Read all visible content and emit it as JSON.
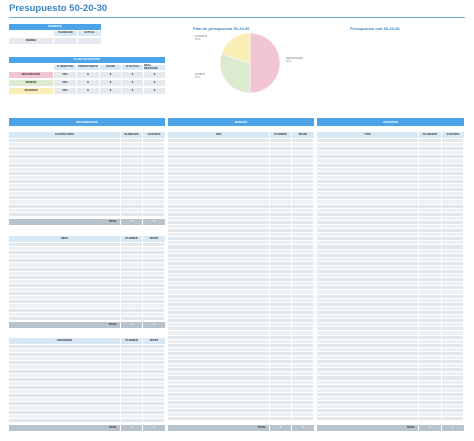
{
  "title": "Presupuesto 50-20-30",
  "ingresos": {
    "header": "INGRESOS",
    "col_planned": "PLANEADO",
    "col_actual": "ACTUAL",
    "row_label": "NÓMINA"
  },
  "flujo": {
    "header": "FLUJO DE EFECTIVO",
    "columns": [
      "% OBJETIVO",
      "PRESUPUESTO",
      "GASTO",
      "% ACTUAL",
      "REAL RESTANTE"
    ],
    "rows": [
      {
        "label": "NECESIDADES",
        "pct": "50%",
        "presupuesto": "$",
        "gasto": "$",
        "actual": "$",
        "restante": "$"
      },
      {
        "label": "DESEOS",
        "pct": "30%",
        "presupuesto": "$",
        "gasto": "$",
        "actual": "$",
        "restante": "$"
      },
      {
        "label": "AHORROS",
        "pct": "20%",
        "presupuesto": "$",
        "gasto": "$",
        "actual": "$",
        "restante": "$"
      }
    ]
  },
  "chart_planned": {
    "title": "Plan de presupuesto 50-20-30",
    "label_ahorros": "AHORROS",
    "label_ahorros_pct": "20 %",
    "label_deseos": "DESEOS",
    "label_deseos_pct": "30 %",
    "label_necesidades": "NECESIDADES",
    "label_necesidades_pct": "50 %"
  },
  "chart_actual": {
    "title": "Presupuesto real 50-20-30"
  },
  "chart_data": {
    "type": "pie",
    "title": "Plan de presupuesto 50-20-30",
    "categories": [
      "NECESIDADES",
      "DESEOS",
      "AHORROS"
    ],
    "values": [
      50,
      30,
      20
    ],
    "colors": [
      "#f1c6d2",
      "#dcebd0",
      "#f9eeb5"
    ]
  },
  "necesidades": {
    "header": "NECESIDADES",
    "sections": [
      {
        "header": "GASTOS FIJOS",
        "col_planned": "PLANEADO",
        "col_spent": "GASTADO",
        "total_label": "TOTAL",
        "total_planned": "0",
        "total_spent": "0"
      },
      {
        "header": "DEBT",
        "col_planned": "PLANNED",
        "col_spent": "SPENT",
        "total_label": "TOTAL",
        "total_planned": "0",
        "total_spent": "0"
      },
      {
        "header": "GROCERIES",
        "col_planned": "PLANNED",
        "col_spent": "SPENT",
        "total_label": "TOTAL",
        "total_planned": "0",
        "total_spent": "0"
      }
    ]
  },
  "deseos": {
    "header": "DESEOS",
    "col_type": "TIPO",
    "col_planned": "PLANNED",
    "col_spent": "SPENT",
    "total_label": "TOTAL",
    "total_planned": "0",
    "total_spent": "0"
  },
  "ahorros": {
    "header": "AHORROS",
    "col_type": "TYPE",
    "col_planned": "PLANEADO",
    "col_spent": "GASTADO",
    "total_label": "TOTAL",
    "total_planned": "0",
    "total_spent": "0"
  },
  "colors": {
    "accent": "#4da3e8",
    "title": "#3a86c8",
    "necesidades": "#f1c6d2",
    "deseos": "#dcebd0",
    "ahorros": "#f9eeb5",
    "total_bar": "#b8c2cb"
  }
}
